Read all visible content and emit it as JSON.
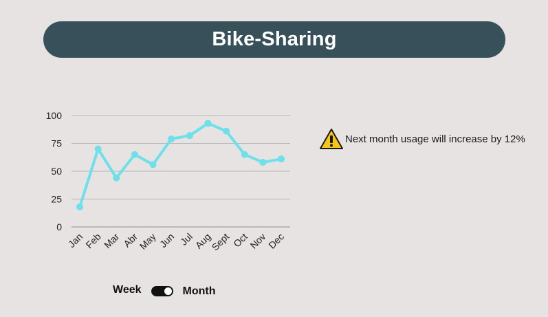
{
  "header": {
    "title": "Bike-Sharing"
  },
  "colors": {
    "title_bg": "#37505a",
    "line": "#6ee0ea",
    "grid": "#b5b5b5",
    "warning": "#f5c518"
  },
  "insight": {
    "icon": "warning-icon",
    "text": "Next month usage will increase by 12%"
  },
  "toggle": {
    "left_label": "Week",
    "right_label": "Month",
    "selected": "Month"
  },
  "chart_data": {
    "type": "line",
    "title": "",
    "xlabel": "",
    "ylabel": "",
    "categories": [
      "Jan",
      "Feb",
      "Mar",
      "Abr",
      "May",
      "Jun",
      "Jul",
      "Aug",
      "Sept",
      "Oct",
      "Nov",
      "Dec"
    ],
    "values": [
      18,
      70,
      44,
      65,
      56,
      79,
      82,
      93,
      86,
      65,
      58,
      61
    ],
    "ylim": [
      0,
      100
    ],
    "yticks": [
      0,
      25,
      50,
      75,
      100
    ],
    "grid": true,
    "legend": "none"
  }
}
